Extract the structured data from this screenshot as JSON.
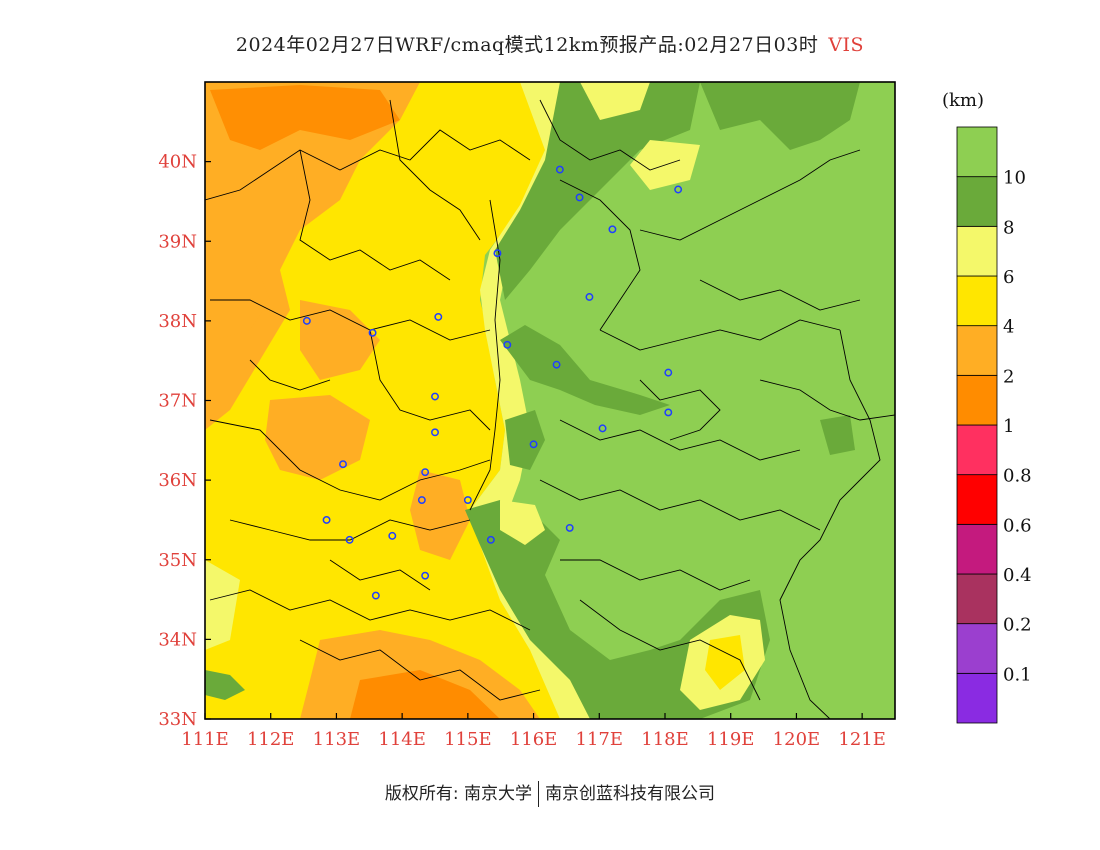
{
  "title": {
    "main": "2024年02月27日WRF/cmaq模式12km预报产品:02月27日03时",
    "variable": "VIS"
  },
  "colorbar": {
    "unit": "(km)",
    "bins": [
      {
        "color": "#8a2be2",
        "label": "0.1"
      },
      {
        "color": "#9b3fcf",
        "label": "0.2"
      },
      {
        "color": "#a9325f",
        "label": "0.4"
      },
      {
        "color": "#c41a7e",
        "label": "0.6"
      },
      {
        "color": "#ff0000",
        "label": "0.8"
      },
      {
        "color": "#ff3060",
        "label": "1"
      },
      {
        "color": "#ff8c00",
        "label": "2"
      },
      {
        "color": "#ffae24",
        "label": "4"
      },
      {
        "color": "#ffe600",
        "label": "6"
      },
      {
        "color": "#f4f86a",
        "label": "8"
      },
      {
        "color": "#6aaa3a",
        "label": "10"
      },
      {
        "color": "#8ecf52",
        "label": ""
      }
    ]
  },
  "map": {
    "lon_range": [
      111,
      121.5
    ],
    "lat_range": [
      33,
      41
    ],
    "x_ticks": [
      "111E",
      "112E",
      "113E",
      "114E",
      "115E",
      "116E",
      "117E",
      "118E",
      "119E",
      "120E",
      "121E"
    ],
    "y_ticks": [
      "33N",
      "34N",
      "35N",
      "36N",
      "37N",
      "38N",
      "39N",
      "40N"
    ],
    "stations": [
      [
        116.4,
        39.9
      ],
      [
        116.7,
        39.55
      ],
      [
        117.2,
        39.15
      ],
      [
        118.2,
        39.65
      ],
      [
        115.45,
        38.85
      ],
      [
        116.85,
        38.3
      ],
      [
        115.6,
        37.7
      ],
      [
        116.35,
        37.45
      ],
      [
        118.05,
        37.35
      ],
      [
        118.05,
        36.85
      ],
      [
        117.05,
        36.65
      ],
      [
        116.0,
        36.45
      ],
      [
        112.55,
        38.0
      ],
      [
        113.55,
        37.85
      ],
      [
        114.55,
        38.05
      ],
      [
        114.5,
        37.05
      ],
      [
        114.5,
        36.6
      ],
      [
        114.35,
        36.1
      ],
      [
        113.1,
        36.2
      ],
      [
        114.3,
        35.75
      ],
      [
        115.0,
        35.75
      ],
      [
        112.85,
        35.5
      ],
      [
        113.2,
        35.25
      ],
      [
        113.85,
        35.3
      ],
      [
        115.35,
        35.25
      ],
      [
        116.55,
        35.4
      ],
      [
        114.35,
        34.8
      ],
      [
        113.6,
        34.55
      ]
    ]
  },
  "footer": {
    "left": "版权所有: 南京大学",
    "right": "南京创蓝科技有限公司"
  }
}
